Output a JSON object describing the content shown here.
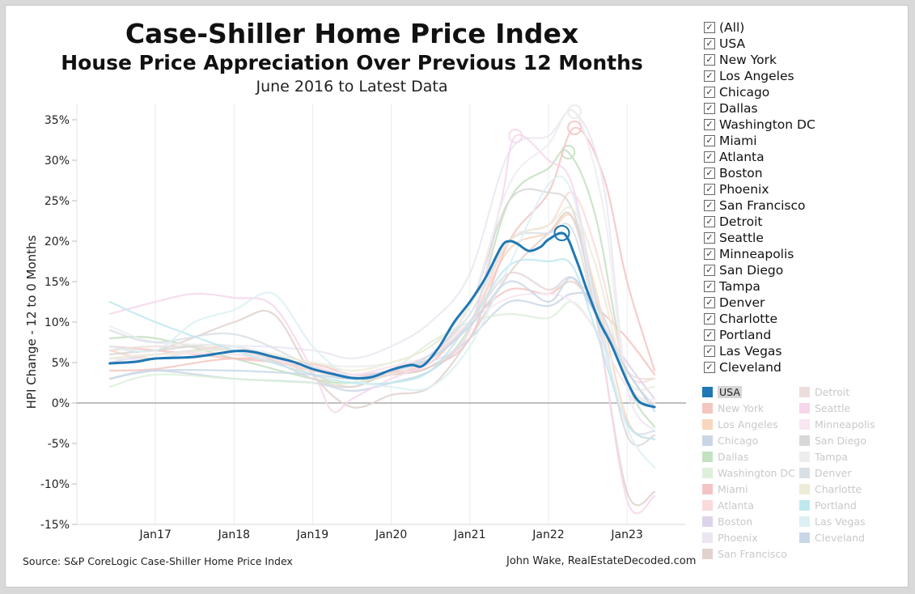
{
  "header": {
    "title": "Case-Shiller Home Price Index",
    "subtitle": "House Price Appreciation Over Previous 12 Months",
    "daterange": "June 2016 to Latest Data"
  },
  "footer": {
    "source": "Source: S&P CoreLogic Case-Shiller Home Price Index",
    "credit": "John Wake, RealEstateDecoded.com"
  },
  "filter": {
    "items": [
      {
        "label": "(All)"
      },
      {
        "label": "USA"
      },
      {
        "label": "New York"
      },
      {
        "label": "Los Angeles"
      },
      {
        "label": "Chicago"
      },
      {
        "label": "Dallas"
      },
      {
        "label": "Washington DC"
      },
      {
        "label": "Miami"
      },
      {
        "label": "Atlanta"
      },
      {
        "label": "Boston"
      },
      {
        "label": "Phoenix"
      },
      {
        "label": "San Francisco"
      },
      {
        "label": "Detroit"
      },
      {
        "label": "Seattle"
      },
      {
        "label": "Minneapolis"
      },
      {
        "label": "San Diego"
      },
      {
        "label": "Tampa"
      },
      {
        "label": "Denver"
      },
      {
        "label": "Charlotte"
      },
      {
        "label": "Portland"
      },
      {
        "label": "Las Vegas"
      },
      {
        "label": "Cleveland"
      }
    ],
    "check_glyph": "✓"
  },
  "legend": {
    "left": [
      {
        "label": "USA",
        "color": "#1f77b4",
        "active": true
      },
      {
        "label": "New York",
        "color": "#f4c6c0"
      },
      {
        "label": "Los Angeles",
        "color": "#f8d7bd"
      },
      {
        "label": "Chicago",
        "color": "#cad6e5"
      },
      {
        "label": "Dallas",
        "color": "#c4e1c1"
      },
      {
        "label": "Washington DC",
        "color": "#ddf0db"
      },
      {
        "label": "Miami",
        "color": "#f4c4c4"
      },
      {
        "label": "Atlanta",
        "color": "#fadada"
      },
      {
        "label": "Boston",
        "color": "#ddd3ea"
      },
      {
        "label": "Phoenix",
        "color": "#ebe6f2"
      },
      {
        "label": "San Francisco",
        "color": "#e1d2cd"
      }
    ],
    "right": [
      {
        "label": "Detroit",
        "color": "#ecdfdb"
      },
      {
        "label": "Seattle",
        "color": "#f6d7ec"
      },
      {
        "label": "Minneapolis",
        "color": "#f8e6f1"
      },
      {
        "label": "San Diego",
        "color": "#d8d8d8"
      },
      {
        "label": "Tampa",
        "color": "#ededed"
      },
      {
        "label": "Denver",
        "color": "#d9dfe6"
      },
      {
        "label": "Charlotte",
        "color": "#ececd8"
      },
      {
        "label": "Portland",
        "color": "#bfe8ee"
      },
      {
        "label": "Las Vegas",
        "color": "#ddf0f4"
      },
      {
        "label": "Cleveland",
        "color": "#c9d8e8"
      }
    ]
  },
  "chart_data": {
    "type": "line",
    "title": "Case-Shiller Home Price Index",
    "xlabel": "",
    "ylabel": "HPI Change - 12 to 0 Months",
    "ylim": [
      -15,
      37
    ],
    "xlim": [
      2016.0,
      2023.75
    ],
    "yticks": [
      -15,
      -10,
      -5,
      0,
      5,
      10,
      15,
      20,
      25,
      30,
      35
    ],
    "ytick_labels": [
      "-15%",
      "-10%",
      "-5%",
      "0%",
      "5%",
      "10%",
      "15%",
      "20%",
      "25%",
      "30%",
      "35%"
    ],
    "xticks": [
      2017,
      2018,
      2019,
      2020,
      2021,
      2022,
      2023
    ],
    "xtick_labels": [
      "Jan17",
      "Jan18",
      "Jan19",
      "Jan20",
      "Jan21",
      "Jan22",
      "Jan23"
    ],
    "highlight": "USA",
    "series": [
      {
        "name": "USA",
        "color": "#1f77b4",
        "peak": [
          2022.17,
          21.0
        ],
        "x": [
          2016.42,
          2016.75,
          2017.0,
          2017.5,
          2018.0,
          2018.25,
          2018.5,
          2018.75,
          2019.0,
          2019.25,
          2019.5,
          2019.75,
          2020.0,
          2020.25,
          2020.4,
          2020.6,
          2020.8,
          2021.0,
          2021.2,
          2021.4,
          2021.5,
          2021.6,
          2021.75,
          2021.9,
          2022.0,
          2022.2,
          2022.35,
          2022.5,
          2022.65,
          2022.8,
          2023.0,
          2023.15,
          2023.35
        ],
        "y": [
          4.9,
          5.1,
          5.5,
          5.7,
          6.4,
          6.3,
          5.7,
          5.1,
          4.2,
          3.6,
          3.1,
          3.2,
          4.1,
          4.7,
          4.6,
          6.8,
          10.0,
          12.5,
          15.5,
          19.3,
          20.0,
          19.7,
          18.8,
          19.3,
          20.2,
          20.9,
          17.8,
          13.7,
          10.0,
          7.2,
          2.7,
          0.2,
          -0.5
        ]
      },
      {
        "name": "New York",
        "color": "#f4c6c0",
        "x": [
          2016.42,
          2017.0,
          2018.0,
          2019.0,
          2019.5,
          2020.0,
          2020.5,
          2021.0,
          2021.5,
          2022.0,
          2022.3,
          2022.6,
          2023.0,
          2023.35
        ],
        "y": [
          4.0,
          4.2,
          5.5,
          4.8,
          3.5,
          3.8,
          5.0,
          10.0,
          14.0,
          13.5,
          15.0,
          12.0,
          8.0,
          3.5
        ]
      },
      {
        "name": "Los Angeles",
        "color": "#f8d7bd",
        "x": [
          2016.42,
          2017.0,
          2018.0,
          2019.0,
          2019.5,
          2020.0,
          2020.5,
          2021.0,
          2021.5,
          2022.0,
          2022.3,
          2022.6,
          2023.0,
          2023.35
        ],
        "y": [
          6.5,
          5.5,
          7.0,
          3.5,
          2.0,
          4.0,
          6.0,
          10.0,
          19.0,
          21.0,
          23.0,
          14.0,
          -2.0,
          -4.5
        ]
      },
      {
        "name": "Chicago",
        "color": "#cad6e5",
        "x": [
          2016.42,
          2017.0,
          2018.0,
          2019.0,
          2019.5,
          2020.0,
          2020.5,
          2021.0,
          2021.5,
          2022.0,
          2022.3,
          2022.6,
          2023.0,
          2023.35
        ],
        "y": [
          3.0,
          4.0,
          3.0,
          2.5,
          1.5,
          2.5,
          4.0,
          8.0,
          12.5,
          12.0,
          13.5,
          12.5,
          4.0,
          -0.5
        ]
      },
      {
        "name": "Dallas",
        "color": "#c4e1c1",
        "peak": [
          2022.25,
          31.0
        ],
        "x": [
          2016.42,
          2017.0,
          2018.0,
          2019.0,
          2019.5,
          2020.0,
          2020.5,
          2021.0,
          2021.5,
          2022.0,
          2022.25,
          2022.6,
          2023.0,
          2023.35
        ],
        "y": [
          8.0,
          8.0,
          5.5,
          3.0,
          2.5,
          3.5,
          4.5,
          9.5,
          25.0,
          29.0,
          31.0,
          23.0,
          3.0,
          -3.0
        ]
      },
      {
        "name": "Washington DC",
        "color": "#ddf0db",
        "x": [
          2016.42,
          2017.0,
          2018.0,
          2019.0,
          2019.5,
          2020.0,
          2020.5,
          2021.0,
          2021.5,
          2022.0,
          2022.3,
          2022.6,
          2023.0,
          2023.35
        ],
        "y": [
          2.0,
          3.5,
          3.0,
          2.5,
          2.5,
          4.0,
          7.5,
          10.0,
          11.0,
          10.5,
          12.5,
          9.0,
          2.0,
          -0.5
        ]
      },
      {
        "name": "Miami",
        "color": "#f4c4c4",
        "peak": [
          2022.33,
          34.0
        ],
        "x": [
          2016.42,
          2017.0,
          2018.0,
          2019.0,
          2019.5,
          2020.0,
          2020.5,
          2021.0,
          2021.5,
          2022.0,
          2022.33,
          2022.7,
          2023.0,
          2023.35
        ],
        "y": [
          7.0,
          6.5,
          5.5,
          4.5,
          3.0,
          3.5,
          4.5,
          8.0,
          20.0,
          26.0,
          34.0,
          28.0,
          15.0,
          4.0
        ]
      },
      {
        "name": "Atlanta",
        "color": "#fadada",
        "x": [
          2016.42,
          2017.0,
          2018.0,
          2019.0,
          2019.5,
          2020.0,
          2020.5,
          2021.0,
          2021.5,
          2022.0,
          2022.3,
          2022.6,
          2023.0,
          2023.35
        ],
        "y": [
          5.5,
          6.0,
          6.0,
          4.0,
          3.5,
          4.5,
          5.5,
          10.0,
          20.0,
          22.0,
          26.0,
          19.0,
          4.0,
          3.0
        ]
      },
      {
        "name": "Boston",
        "color": "#ddd3ea",
        "x": [
          2016.42,
          2017.0,
          2018.0,
          2019.0,
          2019.5,
          2020.0,
          2020.5,
          2021.0,
          2021.5,
          2022.0,
          2022.3,
          2022.6,
          2023.0,
          2023.35
        ],
        "y": [
          5.0,
          6.0,
          6.5,
          4.0,
          3.5,
          4.0,
          5.5,
          10.0,
          16.0,
          14.0,
          15.5,
          11.0,
          5.0,
          0.5
        ]
      },
      {
        "name": "Phoenix",
        "color": "#ebe6f2",
        "peak": [
          2022.33,
          36.0
        ],
        "x": [
          2016.42,
          2017.0,
          2018.0,
          2019.0,
          2019.5,
          2020.0,
          2020.5,
          2021.0,
          2021.5,
          2022.0,
          2022.33,
          2022.7,
          2023.0,
          2023.35
        ],
        "y": [
          5.5,
          5.5,
          7.0,
          6.5,
          5.5,
          7.0,
          10.0,
          16.0,
          31.0,
          33.0,
          36.0,
          27.0,
          2.0,
          -3.5
        ]
      },
      {
        "name": "San Francisco",
        "color": "#e1d2cd",
        "x": [
          2016.42,
          2017.0,
          2018.0,
          2018.5,
          2019.0,
          2019.5,
          2020.0,
          2020.5,
          2021.0,
          2021.5,
          2022.0,
          2022.3,
          2022.6,
          2023.0,
          2023.35
        ],
        "y": [
          7.0,
          6.5,
          10.0,
          11.0,
          3.5,
          -0.5,
          1.0,
          2.0,
          8.0,
          16.0,
          21.0,
          23.0,
          11.0,
          -11.0,
          -11.0
        ]
      },
      {
        "name": "Detroit",
        "color": "#ecdfdb",
        "x": [
          2016.42,
          2017.0,
          2018.0,
          2019.0,
          2019.5,
          2020.0,
          2020.5,
          2021.0,
          2021.5,
          2022.0,
          2022.3,
          2022.6,
          2023.0,
          2023.35
        ],
        "y": [
          6.5,
          7.0,
          6.5,
          4.0,
          3.0,
          3.5,
          5.5,
          10.0,
          16.0,
          14.0,
          15.0,
          12.5,
          4.0,
          3.0
        ]
      },
      {
        "name": "Seattle",
        "color": "#f6d7ec",
        "peak": [
          2021.58,
          33.0
        ],
        "x": [
          2016.42,
          2017.0,
          2017.5,
          2018.0,
          2018.5,
          2019.0,
          2019.25,
          2019.5,
          2020.0,
          2020.5,
          2021.0,
          2021.4,
          2021.58,
          2022.0,
          2022.3,
          2022.6,
          2023.0,
          2023.35
        ],
        "y": [
          11.0,
          12.5,
          13.5,
          13.0,
          12.0,
          4.0,
          -1.0,
          0.5,
          3.0,
          5.0,
          9.0,
          25.0,
          33.0,
          30.0,
          27.0,
          12.0,
          -12.0,
          -11.5
        ]
      },
      {
        "name": "Minneapolis",
        "color": "#f8e6f1",
        "x": [
          2016.42,
          2017.0,
          2018.0,
          2019.0,
          2019.5,
          2020.0,
          2020.5,
          2021.0,
          2021.5,
          2022.0,
          2022.3,
          2022.6,
          2023.0,
          2023.35
        ],
        "y": [
          5.5,
          6.0,
          6.0,
          4.5,
          3.5,
          4.5,
          6.0,
          10.0,
          13.0,
          13.5,
          12.5,
          9.0,
          2.0,
          0.0
        ]
      },
      {
        "name": "San Diego",
        "color": "#d8d8d8",
        "x": [
          2016.42,
          2017.0,
          2018.0,
          2019.0,
          2019.5,
          2020.0,
          2020.5,
          2021.0,
          2021.5,
          2022.0,
          2022.3,
          2022.6,
          2023.0,
          2023.35
        ],
        "y": [
          6.0,
          6.5,
          7.0,
          3.0,
          2.0,
          4.0,
          6.0,
          12.0,
          25.0,
          26.0,
          24.0,
          13.0,
          -4.0,
          -4.0
        ]
      },
      {
        "name": "Tampa",
        "color": "#ededed",
        "peak": [
          2022.33,
          36.0
        ],
        "x": [
          2016.42,
          2017.0,
          2018.0,
          2019.0,
          2019.5,
          2020.0,
          2020.5,
          2021.0,
          2021.5,
          2022.0,
          2022.33,
          2022.7,
          2023.0,
          2023.35
        ],
        "y": [
          9.5,
          7.5,
          7.0,
          5.0,
          4.5,
          5.0,
          7.0,
          12.0,
          27.0,
          32.0,
          36.0,
          24.0,
          2.0,
          0.5
        ]
      },
      {
        "name": "Denver",
        "color": "#d9dfe6",
        "x": [
          2016.42,
          2017.0,
          2018.0,
          2019.0,
          2019.5,
          2020.0,
          2020.5,
          2021.0,
          2021.5,
          2022.0,
          2022.3,
          2022.6,
          2023.0,
          2023.35
        ],
        "y": [
          9.0,
          7.5,
          8.5,
          4.5,
          3.0,
          4.0,
          6.0,
          11.0,
          20.0,
          21.0,
          21.5,
          11.0,
          -2.5,
          -3.5
        ]
      },
      {
        "name": "Charlotte",
        "color": "#ececd8",
        "x": [
          2016.42,
          2017.0,
          2018.0,
          2019.0,
          2019.5,
          2020.0,
          2020.5,
          2021.0,
          2021.5,
          2022.0,
          2022.3,
          2022.6,
          2023.0,
          2023.35
        ],
        "y": [
          5.5,
          6.0,
          6.5,
          5.0,
          4.0,
          5.0,
          7.0,
          12.0,
          20.0,
          22.0,
          24.0,
          17.0,
          3.0,
          2.0
        ]
      },
      {
        "name": "Portland",
        "color": "#bfe8ee",
        "x": [
          2016.42,
          2017.0,
          2018.0,
          2019.0,
          2019.5,
          2020.0,
          2020.5,
          2021.0,
          2021.5,
          2022.0,
          2022.3,
          2022.6,
          2023.0,
          2023.35
        ],
        "y": [
          12.5,
          10.0,
          6.5,
          3.5,
          2.5,
          2.5,
          4.0,
          10.0,
          17.0,
          17.5,
          17.0,
          9.0,
          -2.5,
          -4.5
        ]
      },
      {
        "name": "Las Vegas",
        "color": "#ddf0f4",
        "x": [
          2016.42,
          2017.0,
          2017.5,
          2018.0,
          2018.5,
          2019.0,
          2019.5,
          2020.0,
          2020.5,
          2021.0,
          2021.5,
          2022.0,
          2022.3,
          2022.6,
          2023.0,
          2023.35
        ],
        "y": [
          7.0,
          6.5,
          10.0,
          11.5,
          13.5,
          7.0,
          3.0,
          2.0,
          2.0,
          7.0,
          17.0,
          27.0,
          26.0,
          12.0,
          -3.0,
          -8.0
        ]
      },
      {
        "name": "Cleveland",
        "color": "#c9d8e8",
        "x": [
          2016.42,
          2017.0,
          2018.0,
          2019.0,
          2019.5,
          2020.0,
          2020.5,
          2021.0,
          2021.5,
          2022.0,
          2022.3,
          2022.6,
          2023.0,
          2023.35
        ],
        "y": [
          3.0,
          4.0,
          4.0,
          3.5,
          3.0,
          4.0,
          5.5,
          9.5,
          15.0,
          12.5,
          15.5,
          11.0,
          4.0,
          -1.0
        ]
      }
    ]
  }
}
